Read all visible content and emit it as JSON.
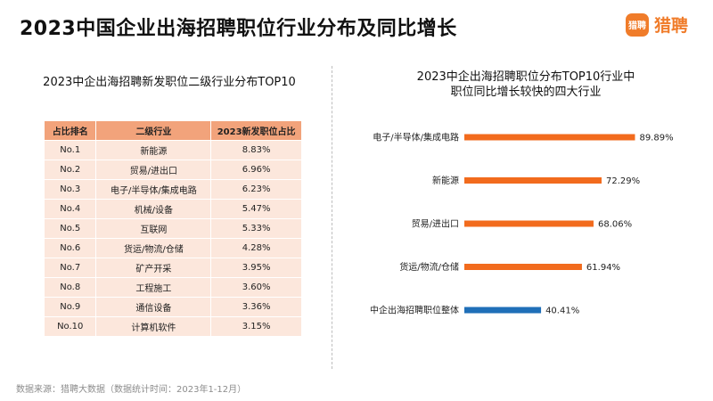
{
  "title": "2023中国企业出海招聘职位行业分布及同比增长",
  "logo": {
    "badge": "猎聘",
    "text": "猎聘"
  },
  "left_panel": {
    "title": "2023中企出海招聘新发职位二级行业分布TOP10",
    "headers": [
      "占比排名",
      "二级行业",
      "2023新发职位占比"
    ],
    "rows": [
      [
        "No.1",
        "新能源",
        "8.83%"
      ],
      [
        "No.2",
        "贸易/进出口",
        "6.96%"
      ],
      [
        "No.3",
        "电子/半导体/集成电路",
        "6.23%"
      ],
      [
        "No.4",
        "机械/设备",
        "5.47%"
      ],
      [
        "No.5",
        "互联网",
        "5.33%"
      ],
      [
        "No.6",
        "货运/物流/仓储",
        "4.28%"
      ],
      [
        "No.7",
        "矿产开采",
        "3.95%"
      ],
      [
        "No.8",
        "工程施工",
        "3.60%"
      ],
      [
        "No.9",
        "通信设备",
        "3.36%"
      ],
      [
        "No.10",
        "计算机软件",
        "3.15%"
      ]
    ]
  },
  "right_panel": {
    "title_line1": "2023中企出海招聘职位分布TOP10行业中",
    "title_line2": "职位同比增长较快的四大行业"
  },
  "chart_data": {
    "type": "bar",
    "orientation": "horizontal",
    "categories": [
      "电子/半导体/集成电路",
      "新能源",
      "贸易/进出口",
      "货运/物流/仓储",
      "中企出海招聘职位整体"
    ],
    "values": [
      89.89,
      72.29,
      68.06,
      61.94,
      40.41
    ],
    "value_labels": [
      "89.89%",
      "72.29%",
      "68.06%",
      "61.94%",
      "40.41%"
    ],
    "colors": [
      "#f26b1d",
      "#f26b1d",
      "#f26b1d",
      "#f26b1d",
      "#1f6fb8"
    ],
    "xlim": [
      0,
      100
    ],
    "grid": false,
    "axes_visible": false
  },
  "source": "数据来源：猎聘大数据（数据统计时间：2023年1-12月）"
}
